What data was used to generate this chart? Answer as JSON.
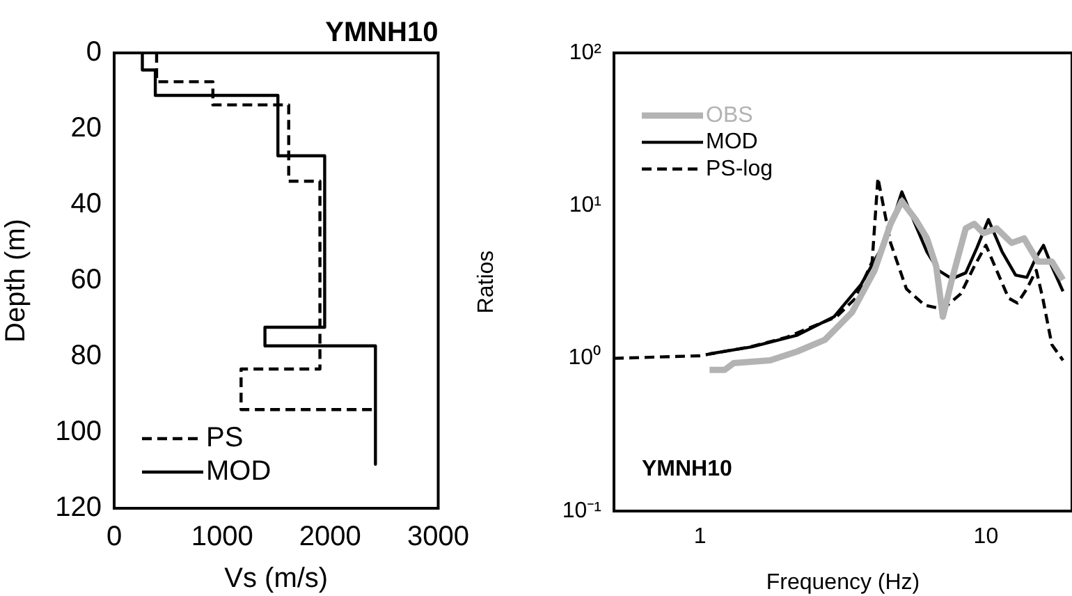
{
  "chart_data": [
    {
      "type": "line",
      "title": "YMNH10",
      "xlabel": "Vs (m/s)",
      "ylabel": "Depth (m)",
      "xlim": [
        0,
        3000
      ],
      "xticks": [
        0,
        1000,
        2000,
        3000
      ],
      "ylim": [
        120,
        0
      ],
      "yticks": [
        0,
        20,
        40,
        60,
        80,
        100,
        120
      ],
      "legend": "bottom left",
      "series": [
        {
          "name": "PS",
          "color": "#000000",
          "line_style": "dashed",
          "x": [
            393,
            393,
            914,
            914,
            1616,
            1616,
            1905,
            1905,
            1175,
            1175,
            2420
          ],
          "values": [
            0,
            7.6,
            7.6,
            13.7,
            13.7,
            33.8,
            33.8,
            83.3,
            83.3,
            94,
            94
          ]
        },
        {
          "name": "MOD",
          "color": "#000000",
          "line_style": "solid",
          "x": [
            261,
            261,
            381,
            381,
            1516,
            1516,
            1949,
            1949,
            1396,
            1396,
            2419,
            2419
          ],
          "values": [
            0,
            4.5,
            4.5,
            11.2,
            11.2,
            27.1,
            27.1,
            72.3,
            72.3,
            77.2,
            77.2,
            108.4
          ]
        }
      ]
    },
    {
      "type": "line",
      "xlabel": "Frequency (Hz)",
      "ylabel": "Ratios",
      "annotations": [
        "YMNH10"
      ],
      "log": "xy",
      "xlim": [
        0.5,
        20
      ],
      "xticks": [
        1,
        10
      ],
      "ylim": [
        0.1,
        100
      ],
      "yticks": [
        {
          "value": 0.1,
          "label": "10⁻¹"
        },
        {
          "value": 1,
          "label": "10⁰"
        },
        {
          "value": 10,
          "label": "10¹"
        },
        {
          "value": 100,
          "label": "10²"
        }
      ],
      "legend": "top left",
      "series": [
        {
          "name": "OBS",
          "color": "#b3b3b3",
          "line_style": "solid",
          "x": [
            1.08,
            1.22,
            1.31,
            1.76,
            2.19,
            2.73,
            3.4,
            4.08,
            4.64,
            5.08,
            5.68,
            6.22,
            6.7,
            7.07,
            7.6,
            8.5,
            9.1,
            9.8,
            10.9,
            12.3,
            13.6,
            15.2,
            17.0,
            18.6
          ],
          "values": [
            0.84,
            0.84,
            0.93,
            0.97,
            1.11,
            1.32,
            2.0,
            3.77,
            7.6,
            10.7,
            8.1,
            6.1,
            4.0,
            1.87,
            3.27,
            7.1,
            7.6,
            6.6,
            7.1,
            5.7,
            6.1,
            4.3,
            4.3,
            3.27
          ]
        },
        {
          "name": "MOD",
          "color": "#000000",
          "line_style": "solid",
          "x": [
            1.08,
            1.52,
            2.19,
            2.94,
            3.66,
            4.24,
            4.73,
            5.08,
            5.57,
            6.22,
            6.82,
            7.6,
            8.5,
            9.3,
            10.2,
            11.4,
            12.7,
            13.9,
            15.0,
            15.9,
            17.0,
            18.6
          ],
          "values": [
            1.07,
            1.19,
            1.42,
            1.87,
            3.05,
            4.97,
            8.1,
            12.3,
            8.1,
            4.97,
            3.77,
            3.32,
            3.63,
            5.3,
            8.1,
            4.97,
            3.51,
            3.39,
            4.6,
            5.5,
            4.0,
            2.75
          ]
        },
        {
          "name": "PS-log",
          "color": "#000000",
          "line_style": "dashed",
          "x": [
            0.5,
            1.0,
            1.5,
            2.0,
            3.0,
            3.5,
            4.0,
            4.19,
            4.64,
            5.27,
            6.1,
            7.07,
            8.17,
            9.1,
            10.0,
            10.9,
            12.0,
            12.9,
            13.9,
            15.0,
            15.8,
            17.0,
            18.6
          ],
          "values": [
            1.0,
            1.04,
            1.19,
            1.37,
            1.87,
            2.48,
            4.3,
            15.2,
            5.7,
            2.85,
            2.23,
            2.1,
            2.65,
            4.0,
            5.5,
            3.77,
            2.48,
            2.3,
            2.85,
            3.77,
            2.48,
            1.23,
            0.97
          ]
        }
      ]
    }
  ]
}
